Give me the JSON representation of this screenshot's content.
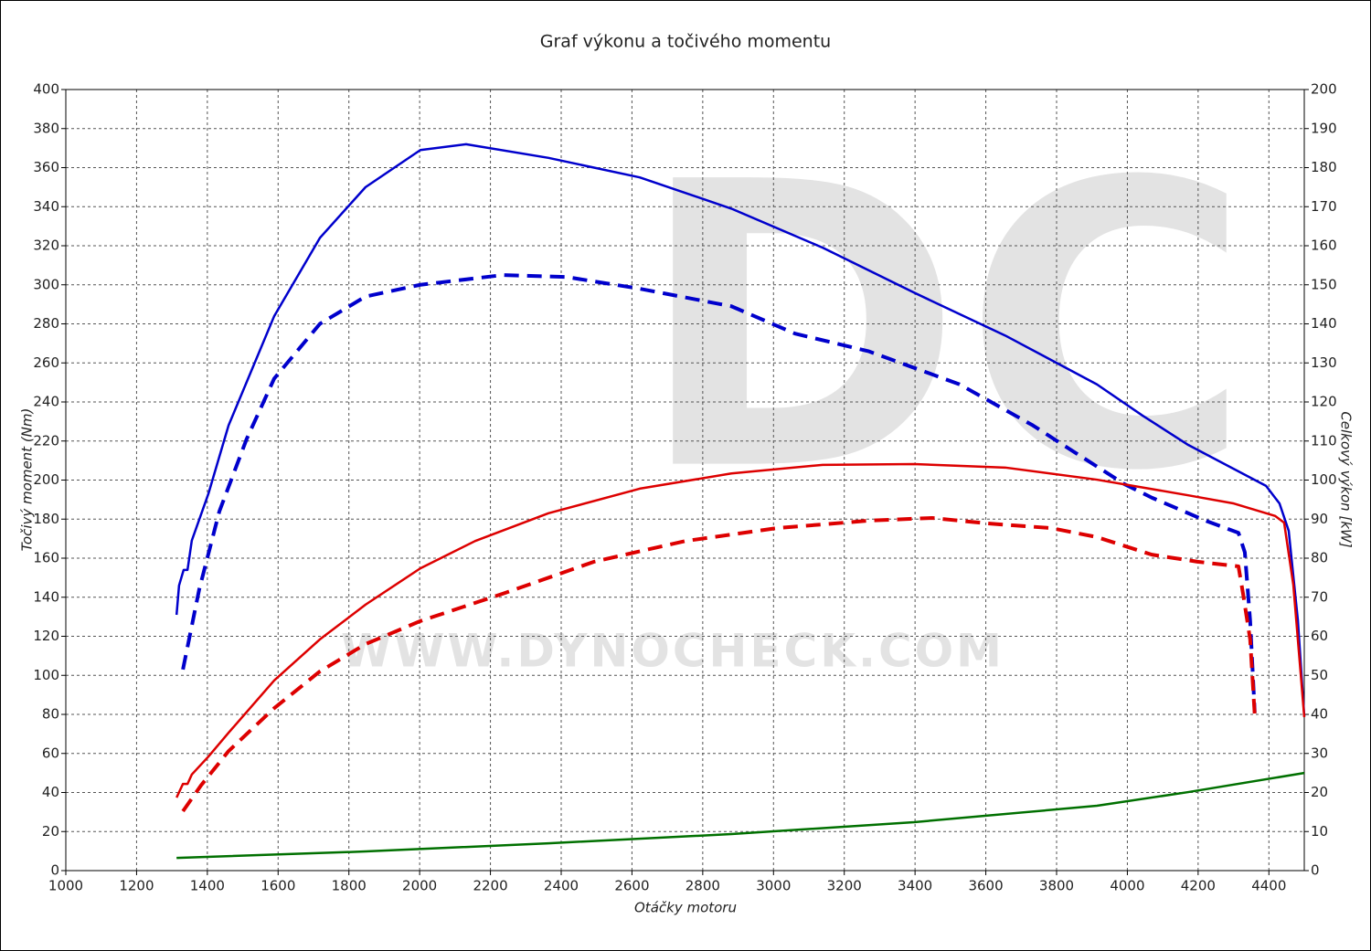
{
  "chart_data": {
    "type": "line",
    "title": "Graf výkonu a točivého momentu",
    "x_label": "Otáčky motoru",
    "y_label": "Točivý moment (Nm)",
    "y2_label": "Celkový výkon [kW]",
    "watermark": "DC",
    "watermark_url": "WWW.DYNOCHECK.COM",
    "xlim": [
      1000,
      4500
    ],
    "xticks": [
      1000,
      1200,
      1400,
      1600,
      1800,
      2000,
      2200,
      2400,
      2600,
      2800,
      3000,
      3200,
      3400,
      3600,
      3800,
      4000,
      4200,
      4400
    ],
    "ylim": [
      0,
      400
    ],
    "yticks": [
      0,
      20,
      40,
      60,
      80,
      100,
      120,
      140,
      160,
      180,
      200,
      220,
      240,
      260,
      280,
      300,
      320,
      340,
      360,
      380,
      400
    ],
    "y2lim": [
      0,
      200
    ],
    "y2ticks": [
      0,
      10,
      20,
      30,
      40,
      50,
      60,
      70,
      80,
      90,
      100,
      110,
      120,
      130,
      140,
      150,
      160,
      170,
      180,
      190,
      200
    ],
    "grid": true,
    "series": [
      {
        "color": "#0000cc",
        "dashed": false,
        "x": [
          1313,
          1320,
          1333,
          1344,
          1356,
          1403,
          1460,
          1589,
          1718,
          1847,
          2002,
          2131,
          2364,
          2622,
          2881,
          3139,
          3397,
          3655,
          3914,
          4043,
          4172,
          4392,
          4430,
          4456,
          4482,
          4500
        ],
        "values": [
          131,
          146,
          154,
          154,
          169,
          193,
          228,
          284,
          324,
          350,
          369,
          372,
          365,
          355,
          339,
          319,
          296,
          274,
          249,
          233,
          218,
          197,
          188,
          174,
          128,
          79
        ]
      },
      {
        "color": "#0000cc",
        "dashed": true,
        "x": [
          1331,
          1377,
          1434,
          1511,
          1589,
          1718,
          1847,
          2002,
          2235,
          2415,
          2622,
          2881,
          3061,
          3268,
          3526,
          3733,
          3810,
          3991,
          4069,
          4224,
          4314,
          4332,
          4347,
          4360
        ],
        "values": [
          103,
          144,
          184,
          221,
          252,
          280,
          294,
          300,
          305,
          304,
          298,
          289,
          275,
          266,
          249,
          228,
          219,
          198,
          191,
          179,
          173,
          163,
          128,
          81
        ]
      },
      {
        "color": "#dd0000",
        "dashed": false,
        "axis": "y2",
        "x": [
          1313,
          1331,
          1344,
          1356,
          1403,
          1460,
          1589,
          1718,
          1847,
          2002,
          2157,
          2364,
          2622,
          2881,
          3139,
          3397,
          3655,
          3914,
          4172,
          4301,
          4418,
          4443,
          4469,
          4500
        ],
        "values": [
          18.7,
          22.2,
          22.2,
          24.6,
          29.2,
          35.3,
          48.7,
          59.2,
          68.1,
          77.4,
          84.4,
          91.5,
          97.8,
          101.7,
          103.9,
          104.1,
          103.2,
          100.1,
          96.1,
          94.0,
          90.8,
          89.1,
          73.2,
          39.3
        ]
      },
      {
        "color": "#dd0000",
        "dashed": true,
        "axis": "y2",
        "x": [
          1331,
          1382,
          1460,
          1589,
          1718,
          1847,
          2002,
          2235,
          2493,
          2751,
          3010,
          3268,
          3449,
          3604,
          3785,
          3914,
          4069,
          4198,
          4314,
          4327,
          4347,
          4360
        ],
        "values": [
          15.2,
          21.8,
          30.6,
          41.6,
          51.0,
          58.0,
          63.9,
          70.9,
          79.1,
          84.4,
          87.7,
          89.6,
          90.3,
          88.9,
          87.7,
          85.4,
          80.9,
          79.1,
          77.9,
          70.9,
          59.2,
          39.8
        ]
      },
      {
        "color": "#007000",
        "dashed": false,
        "x": [
          1313,
          1847,
          2364,
          2881,
          3397,
          3914,
          4172,
          4500
        ],
        "values": [
          6.5,
          9.8,
          14,
          18.7,
          24.8,
          33.2,
          40.2,
          50
        ]
      }
    ]
  }
}
